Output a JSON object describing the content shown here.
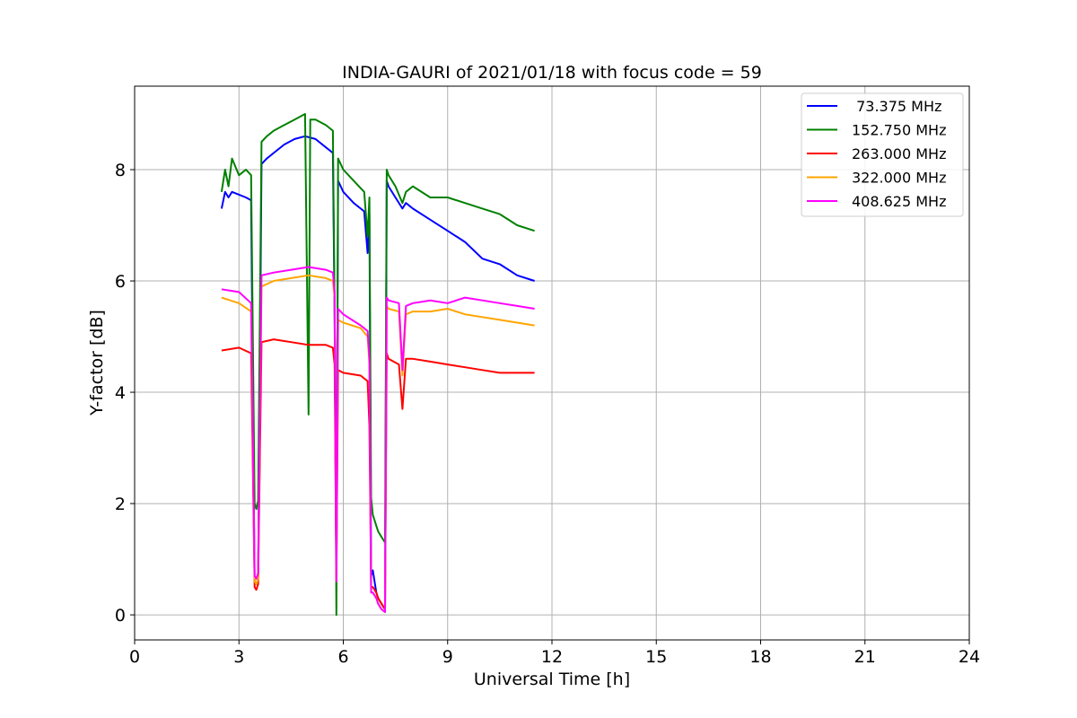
{
  "chart_data": {
    "type": "line",
    "title": "INDIA-GAURI of 2021/01/18 with focus code = 59",
    "xlabel": "Universal Time [h]",
    "ylabel": "Y-factor [dB]",
    "xlim": [
      0,
      24
    ],
    "ylim": [
      -0.45,
      9.5
    ],
    "xticks": [
      0,
      3,
      6,
      9,
      12,
      15,
      18,
      21,
      24
    ],
    "yticks": [
      0,
      2,
      4,
      6,
      8
    ],
    "grid": true,
    "legend_position": "top-right",
    "series": [
      {
        "name": " 73.375 MHz",
        "color": "#0000ff",
        "x": [
          2.5,
          2.6,
          2.7,
          2.8,
          3.0,
          3.2,
          3.35,
          3.45,
          3.5,
          3.55,
          3.65,
          3.8,
          4.0,
          4.3,
          4.6,
          4.9,
          5.2,
          5.5,
          5.7,
          5.75,
          5.8,
          5.85,
          6.0,
          6.3,
          6.6,
          6.7,
          6.75,
          6.8,
          6.85,
          6.95,
          7.0,
          7.1,
          7.2,
          7.25,
          7.3,
          7.5,
          7.7,
          7.8,
          8.0,
          8.5,
          9.0,
          9.5,
          10.0,
          10.5,
          11.0,
          11.5
        ],
        "y": [
          7.3,
          7.6,
          7.5,
          7.6,
          7.55,
          7.5,
          7.45,
          0.6,
          0.55,
          0.65,
          8.1,
          8.2,
          8.3,
          8.45,
          8.55,
          8.6,
          8.55,
          8.4,
          8.3,
          5.4,
          0.7,
          7.8,
          7.6,
          7.4,
          7.25,
          6.5,
          7.2,
          0.7,
          0.8,
          0.4,
          0.3,
          0.2,
          0.1,
          7.8,
          7.7,
          7.5,
          7.3,
          7.4,
          7.3,
          7.1,
          6.9,
          6.7,
          6.4,
          6.3,
          6.1,
          6.0
        ]
      },
      {
        "name": "152.750 MHz",
        "color": "#008000",
        "x": [
          2.5,
          2.6,
          2.7,
          2.8,
          3.0,
          3.2,
          3.35,
          3.45,
          3.5,
          3.55,
          3.65,
          3.8,
          4.0,
          4.3,
          4.6,
          4.9,
          5.0,
          5.05,
          5.2,
          5.5,
          5.7,
          5.75,
          5.8,
          5.85,
          6.0,
          6.3,
          6.6,
          6.7,
          6.75,
          6.8,
          6.85,
          6.95,
          7.0,
          7.1,
          7.2,
          7.25,
          7.3,
          7.5,
          7.7,
          7.8,
          8.0,
          8.5,
          9.0,
          9.5,
          10.0,
          10.5,
          11.0,
          11.5
        ],
        "y": [
          7.6,
          8.0,
          7.7,
          8.2,
          7.9,
          8.0,
          7.9,
          2.0,
          1.9,
          2.05,
          8.5,
          8.6,
          8.7,
          8.8,
          8.9,
          9.0,
          3.6,
          8.9,
          8.9,
          8.8,
          8.7,
          5.6,
          0.0,
          8.2,
          8.0,
          7.8,
          7.6,
          6.8,
          7.5,
          2.1,
          1.8,
          1.6,
          1.5,
          1.4,
          1.3,
          8.0,
          7.9,
          7.7,
          7.4,
          7.6,
          7.7,
          7.5,
          7.5,
          7.4,
          7.3,
          7.2,
          7.0,
          6.9
        ]
      },
      {
        "name": "263.000 MHz",
        "color": "#ff0000",
        "x": [
          2.5,
          3.0,
          3.35,
          3.45,
          3.5,
          3.55,
          3.65,
          4.0,
          4.5,
          5.0,
          5.5,
          5.7,
          5.75,
          5.8,
          5.85,
          6.0,
          6.5,
          6.7,
          6.75,
          6.8,
          6.85,
          6.95,
          7.0,
          7.1,
          7.2,
          7.25,
          7.3,
          7.6,
          7.7,
          7.8,
          8.0,
          8.5,
          9.0,
          9.5,
          10.0,
          10.5,
          11.0,
          11.5
        ],
        "y": [
          4.75,
          4.8,
          4.7,
          0.5,
          0.45,
          0.55,
          4.9,
          4.95,
          4.9,
          4.85,
          4.85,
          4.8,
          4.5,
          0.65,
          4.4,
          4.35,
          4.3,
          4.2,
          3.4,
          0.5,
          0.5,
          0.4,
          0.3,
          0.2,
          0.1,
          4.7,
          4.6,
          4.5,
          3.7,
          4.6,
          4.6,
          4.55,
          4.5,
          4.45,
          4.4,
          4.35,
          4.35,
          4.35
        ]
      },
      {
        "name": "322.000 MHz",
        "color": "#ffa500",
        "x": [
          2.5,
          3.0,
          3.35,
          3.45,
          3.5,
          3.55,
          3.65,
          4.0,
          4.5,
          5.0,
          5.5,
          5.7,
          5.75,
          5.8,
          5.85,
          6.0,
          6.5,
          6.7,
          6.75,
          6.8,
          6.85,
          6.95,
          7.0,
          7.1,
          7.2,
          7.25,
          7.3,
          7.6,
          7.7,
          7.8,
          8.0,
          8.5,
          9.0,
          9.5,
          10.0,
          10.5,
          11.0,
          11.5
        ],
        "y": [
          5.7,
          5.6,
          5.45,
          0.6,
          0.55,
          0.65,
          5.9,
          6.0,
          6.05,
          6.1,
          6.05,
          6.0,
          5.7,
          0.6,
          5.3,
          5.25,
          5.15,
          5.0,
          4.5,
          0.4,
          0.4,
          0.3,
          0.2,
          0.1,
          0.05,
          5.55,
          5.5,
          5.45,
          4.3,
          5.4,
          5.45,
          5.45,
          5.5,
          5.4,
          5.35,
          5.3,
          5.25,
          5.2
        ]
      },
      {
        "name": "408.625 MHz",
        "color": "#ff00ff",
        "x": [
          2.5,
          3.0,
          3.35,
          3.45,
          3.5,
          3.55,
          3.65,
          4.0,
          4.5,
          5.0,
          5.5,
          5.7,
          5.75,
          5.8,
          5.85,
          6.0,
          6.5,
          6.7,
          6.75,
          6.8,
          6.85,
          6.95,
          7.0,
          7.1,
          7.2,
          7.25,
          7.3,
          7.6,
          7.7,
          7.8,
          8.0,
          8.5,
          9.0,
          9.5,
          10.0,
          10.5,
          11.0,
          11.5
        ],
        "y": [
          5.85,
          5.8,
          5.6,
          0.7,
          0.65,
          0.75,
          6.1,
          6.15,
          6.2,
          6.25,
          6.2,
          6.15,
          5.8,
          0.6,
          5.5,
          5.4,
          5.2,
          5.1,
          4.6,
          0.4,
          0.4,
          0.3,
          0.2,
          0.1,
          0.05,
          5.7,
          5.65,
          5.6,
          4.4,
          5.55,
          5.6,
          5.65,
          5.6,
          5.7,
          5.65,
          5.6,
          5.55,
          5.5
        ]
      }
    ]
  }
}
